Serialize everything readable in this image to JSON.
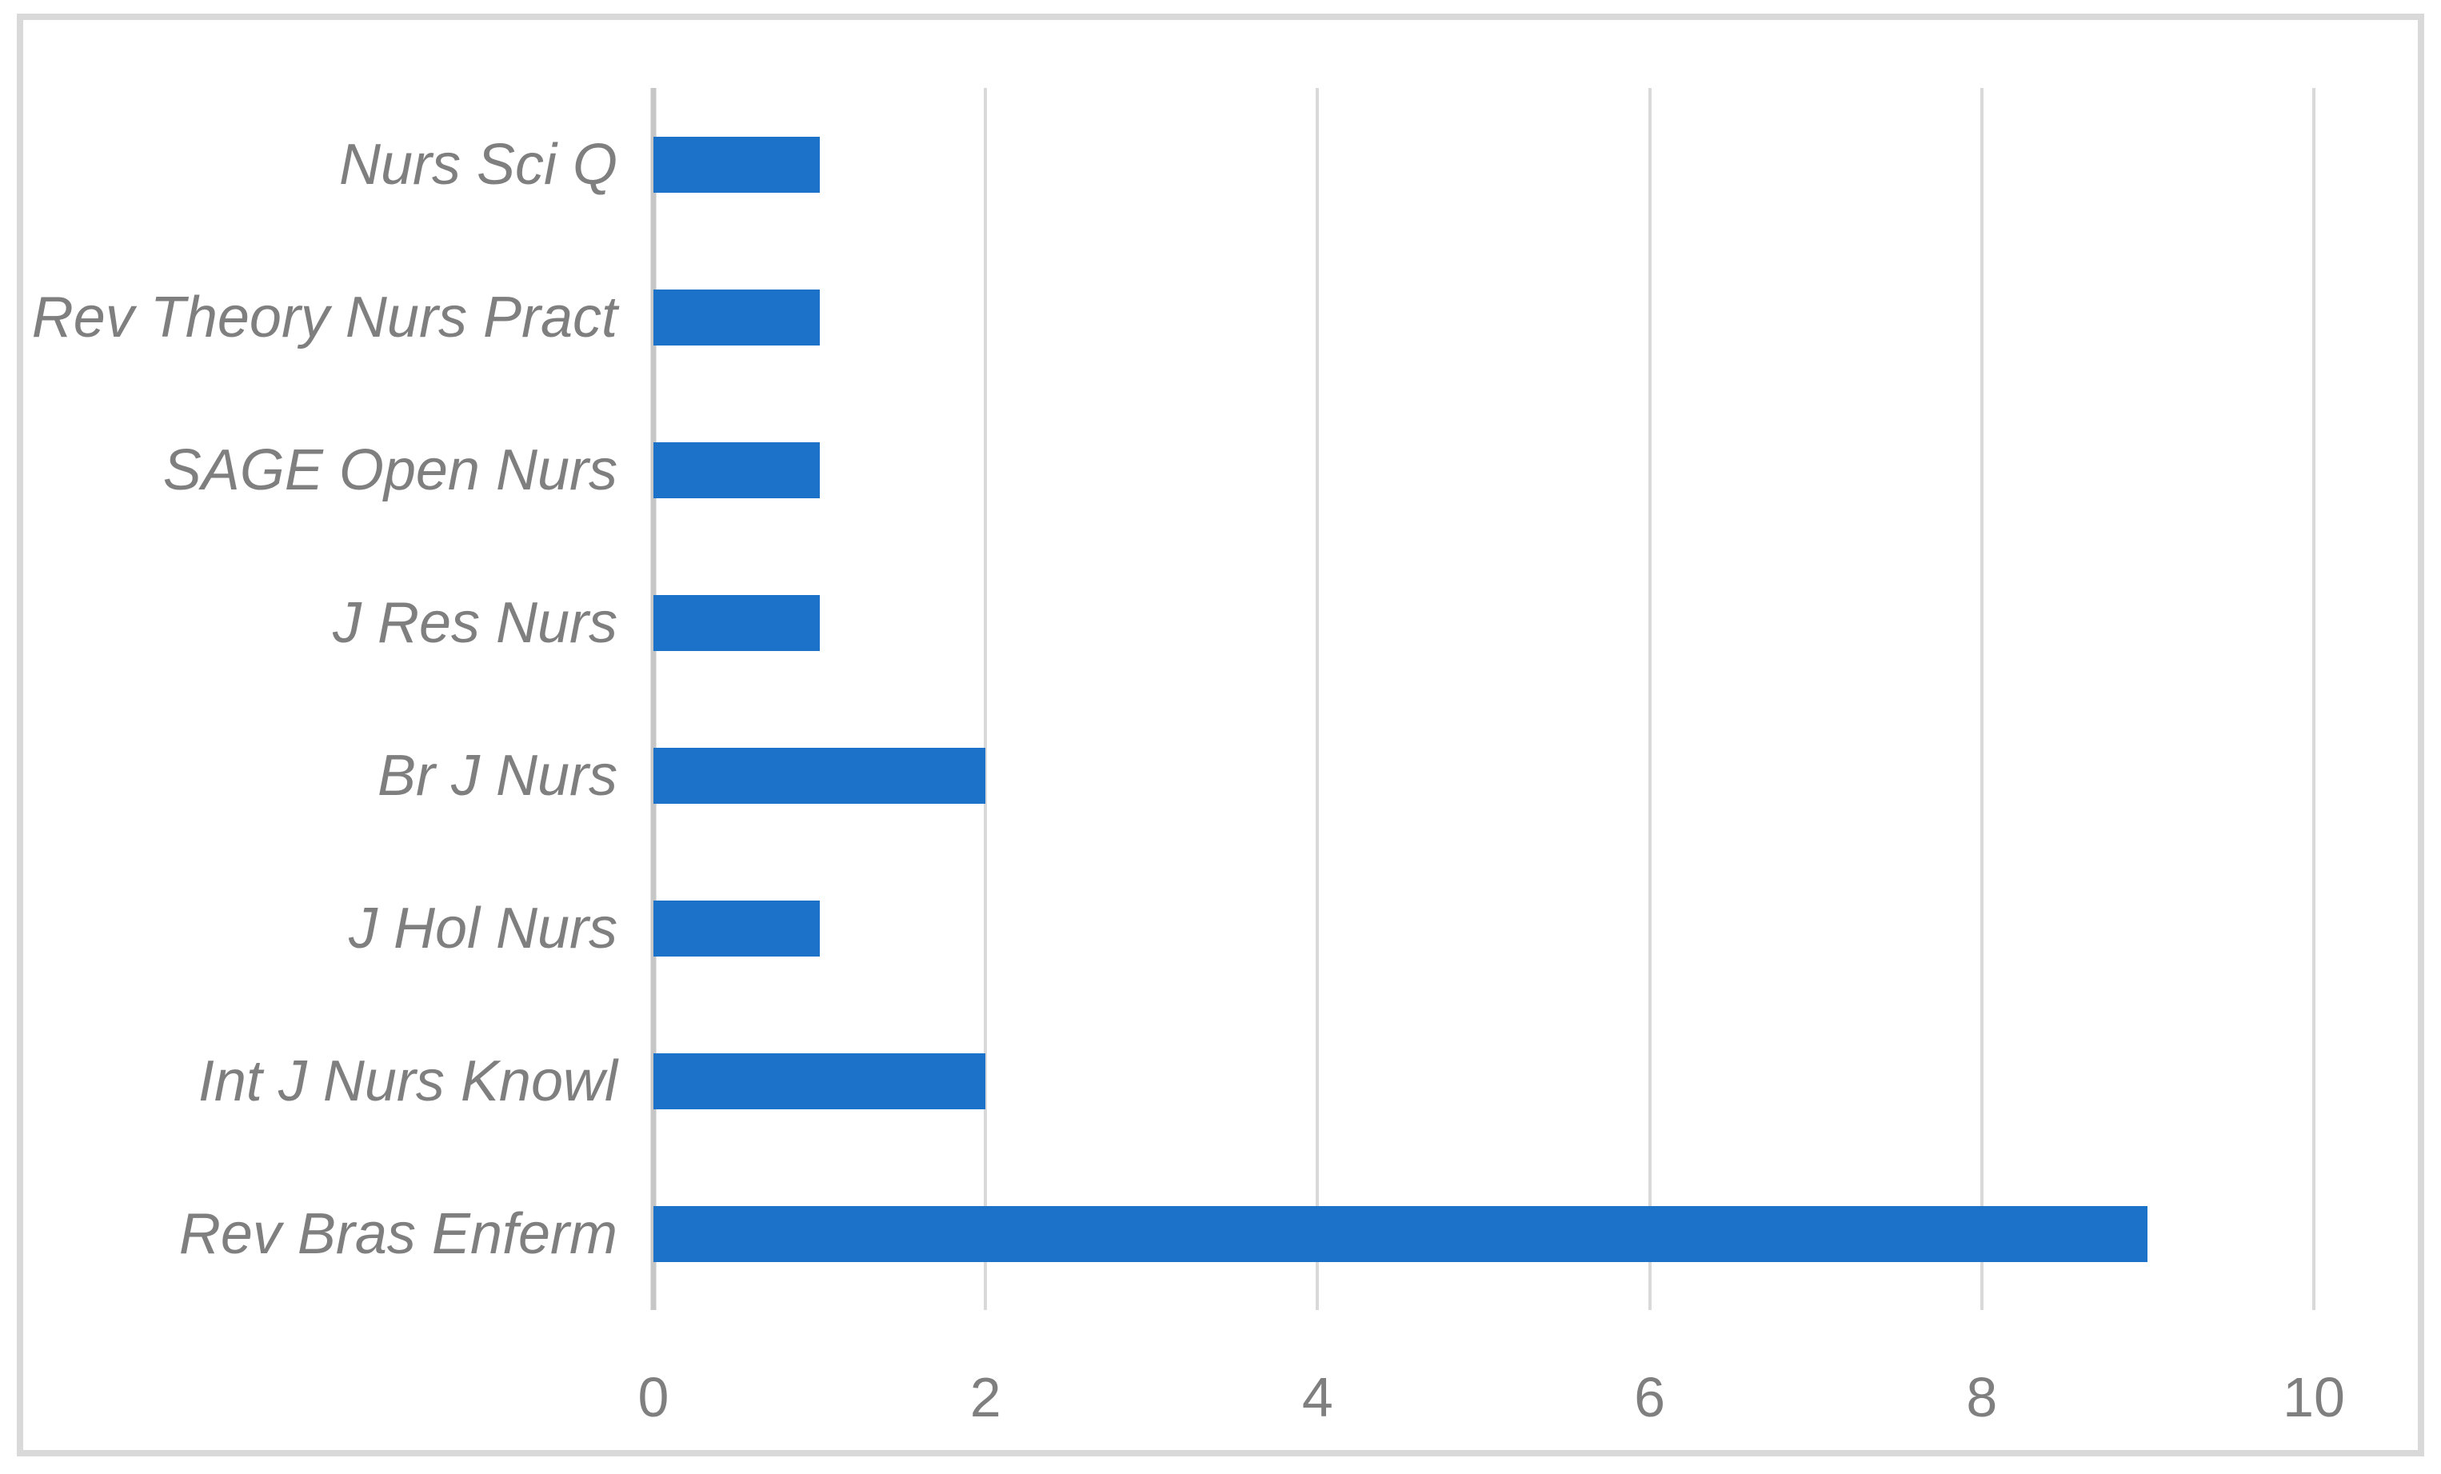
{
  "chart_data": {
    "type": "bar",
    "orientation": "horizontal",
    "title": "",
    "xlabel": "",
    "ylabel": "",
    "categories": [
      "Nurs Sci Q",
      "Rev Theory Nurs Pract",
      "SAGE Open Nurs",
      "J Res Nurs",
      "Br J Nurs",
      "J Hol Nurs",
      "Int J Nurs Knowl",
      "Rev Bras Enferm"
    ],
    "values": [
      1,
      1,
      1,
      1,
      2,
      1,
      2,
      9
    ],
    "xlim": [
      0,
      10
    ],
    "x_ticks": [
      "0",
      "2",
      "4",
      "6",
      "8",
      "10"
    ],
    "grid": "vertical-on",
    "legend": "none",
    "colors": {
      "bar": "#1C71C8",
      "gridline": "#D9D9D9",
      "axis_line": "#C6C6C6",
      "text": "#7F7F7F",
      "frame": "#D9D9D9",
      "background": "#FFFFFF"
    }
  }
}
